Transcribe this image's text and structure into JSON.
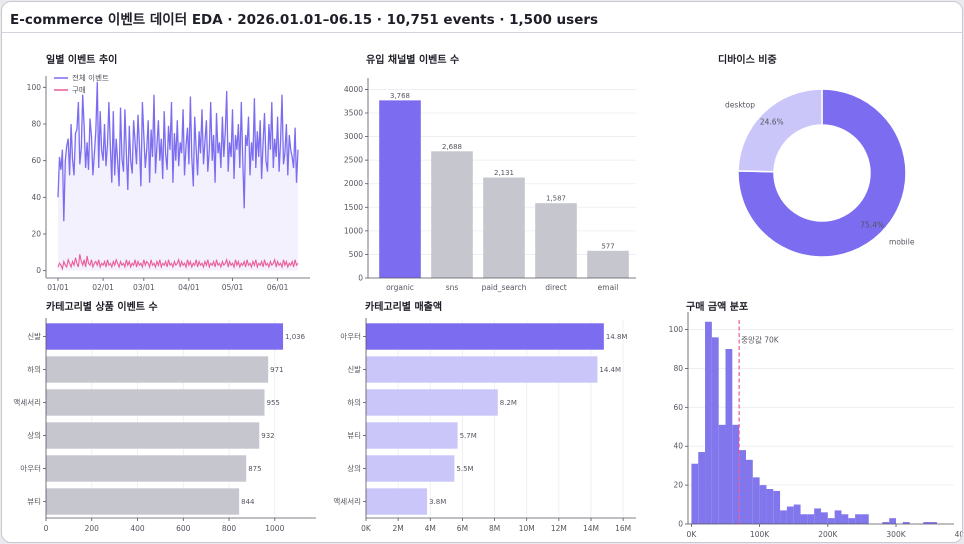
{
  "header": {
    "title": "E-commerce 이벤트 데이터 EDA  ·  2026.01.01–06.15  ·  10,751 events · 1,500 users"
  },
  "colors": {
    "primary": "#7b6cf0",
    "gray": "#c6c6cf",
    "light_purple": "#cbc6fa",
    "pink": "#ec5c96",
    "area_fill": "#f3f1fe",
    "hist": "#8276ec"
  },
  "chart_data": [
    {
      "id": "daily",
      "type": "line",
      "title": "일별 이벤트 추이",
      "xlabel": "",
      "ylabel": "",
      "ylim": [
        -4,
        104
      ],
      "yticks": [
        0,
        20,
        40,
        60,
        80,
        100
      ],
      "xticks": [
        "01/01",
        "02/01",
        "03/01",
        "04/01",
        "05/01",
        "06/01"
      ],
      "xtick_day_index": [
        0,
        31,
        59,
        90,
        120,
        151
      ],
      "n_days": 166,
      "legend": {
        "placement": "top-left"
      },
      "series": [
        {
          "name": "전체 이벤트",
          "values": [
            40,
            62,
            55,
            66,
            27,
            60,
            68,
            72,
            52,
            80,
            61,
            52,
            75,
            77,
            92,
            58,
            67,
            96,
            78,
            56,
            70,
            55,
            83,
            73,
            52,
            64,
            76,
            103,
            56,
            87,
            66,
            60,
            80,
            57,
            69,
            92,
            67,
            48,
            87,
            52,
            72,
            60,
            46,
            89,
            61,
            54,
            88,
            64,
            44,
            79,
            60,
            53,
            82,
            70,
            58,
            85,
            68,
            46,
            92,
            74,
            56,
            66,
            82,
            48,
            77,
            62,
            96,
            53,
            68,
            82,
            60,
            72,
            50,
            87,
            64,
            55,
            79,
            66,
            92,
            48,
            75,
            60,
            82,
            57,
            70,
            64,
            88,
            52,
            68,
            78,
            58,
            95,
            62,
            46,
            84,
            66,
            52,
            76,
            64,
            88,
            58,
            70,
            82,
            54,
            66,
            92,
            60,
            74,
            48,
            86,
            64,
            70,
            56,
            84,
            62,
            76,
            98,
            54,
            70,
            62,
            88,
            50,
            74,
            66,
            80,
            56,
            92,
            62,
            34,
            74,
            68,
            84,
            52,
            70,
            60,
            94,
            56,
            76,
            62,
            82,
            50,
            70,
            86,
            60,
            54,
            80,
            66,
            92,
            56,
            72,
            62,
            84,
            54,
            70,
            96,
            58,
            64,
            80,
            52,
            74,
            66,
            62,
            56,
            78,
            48,
            66
          ]
        },
        {
          "name": "구매",
          "values": [
            2,
            4,
            3,
            1,
            5,
            3,
            2,
            6,
            4,
            2,
            5,
            3,
            7,
            4,
            2,
            9,
            5,
            3,
            6,
            2,
            8,
            4,
            3,
            6,
            2,
            4,
            5,
            3,
            6,
            2,
            4,
            3,
            5,
            2,
            6,
            3,
            4,
            2,
            5,
            3,
            6,
            4,
            2,
            5,
            3,
            4,
            2,
            6,
            3,
            5,
            2,
            4,
            3,
            6,
            2,
            5,
            3,
            4,
            2,
            6,
            3,
            5,
            4,
            2,
            6,
            3,
            4,
            2,
            5,
            3,
            6,
            2,
            4,
            3,
            5,
            2,
            6,
            3,
            4,
            2,
            5,
            3,
            4,
            6,
            2,
            5,
            3,
            4,
            2,
            6,
            3,
            5,
            2,
            4,
            3,
            6,
            2,
            5,
            3,
            4,
            2,
            5,
            3,
            6,
            2,
            4,
            3,
            5,
            2,
            6,
            3,
            4,
            2,
            5,
            3,
            4,
            6,
            2,
            5,
            3,
            4,
            2,
            6,
            3,
            5,
            2,
            4,
            3,
            5,
            2,
            6,
            3,
            4,
            2,
            5,
            3,
            6,
            2,
            4,
            3,
            5,
            2,
            6,
            3,
            4,
            2,
            5,
            3,
            4,
            6,
            2,
            5,
            3,
            4,
            2,
            6,
            3,
            5,
            2,
            4,
            3,
            5,
            2,
            6,
            3,
            4
          ]
        }
      ]
    },
    {
      "id": "channel",
      "type": "bar",
      "title": "유입 채널별 이벤트 수",
      "categories": [
        "organic",
        "sns",
        "paid_search",
        "direct",
        "email"
      ],
      "values": [
        3768,
        2688,
        2131,
        1587,
        577
      ],
      "value_labels": [
        "3,768",
        "2,688",
        "2,131",
        "1,587",
        "577"
      ],
      "ylim": [
        0,
        4200
      ],
      "yticks": [
        0,
        500,
        1000,
        1500,
        2000,
        2500,
        3000,
        3500,
        4000
      ],
      "highlight_index": 0
    },
    {
      "id": "device",
      "type": "pie",
      "title": "디바이스 비중",
      "categories": [
        "mobile",
        "desktop"
      ],
      "values": [
        75.4,
        24.6
      ],
      "value_labels": [
        "75.4%",
        "24.6%"
      ]
    },
    {
      "id": "category_events",
      "type": "bar",
      "orientation": "horizontal",
      "title": "카테고리별 상품 이벤트 수",
      "categories": [
        "신발",
        "하의",
        "액세서리",
        "상의",
        "아우터",
        "뷰티"
      ],
      "values": [
        1036,
        971,
        955,
        932,
        875,
        844
      ],
      "value_labels": [
        "1,036",
        "971",
        "955",
        "932",
        "875",
        "844"
      ],
      "xlim": [
        0,
        1180
      ],
      "xticks": [
        0,
        200,
        400,
        600,
        800,
        1000
      ],
      "highlight_index": 0
    },
    {
      "id": "category_revenue",
      "type": "bar",
      "orientation": "horizontal",
      "title": "카테고리별 매출액",
      "categories": [
        "아우터",
        "신발",
        "하의",
        "뷰티",
        "상의",
        "액세서리"
      ],
      "values": [
        14.8,
        14.4,
        8.2,
        5.7,
        5.5,
        3.8
      ],
      "value_labels": [
        "14.8M",
        "14.4M",
        "8.2M",
        "5.7M",
        "5.5M",
        "3.8M"
      ],
      "xlim": [
        0,
        16.8
      ],
      "xticks": [
        0,
        2,
        4,
        6,
        8,
        10,
        12,
        14,
        16
      ],
      "xtick_labels": [
        "0K",
        "2M",
        "4M",
        "6M",
        "8M",
        "10M",
        "12M",
        "14M",
        "16M"
      ],
      "highlight_index": 0
    },
    {
      "id": "purchase_hist",
      "type": "bar",
      "subtype": "histogram",
      "title": "구매 금액 분포",
      "bin_width": 10,
      "x_start": 0,
      "counts": [
        31,
        37,
        104,
        96,
        51,
        90,
        51,
        38,
        33,
        24,
        20,
        18,
        17,
        7,
        9,
        10,
        5,
        5,
        8,
        6,
        3,
        7,
        5,
        3,
        5,
        5,
        0,
        0,
        1,
        3,
        0,
        1,
        0,
        0,
        1,
        1
      ],
      "xlim": [
        -5,
        385
      ],
      "ylim": [
        0,
        108
      ],
      "xticks": [
        0,
        100,
        200,
        300,
        400
      ],
      "xtick_labels": [
        "0K",
        "100K",
        "200K",
        "300K",
        "400K"
      ],
      "yticks": [
        0,
        20,
        40,
        60,
        80,
        100
      ],
      "median": 70,
      "median_label": "중앙값 70K"
    }
  ]
}
